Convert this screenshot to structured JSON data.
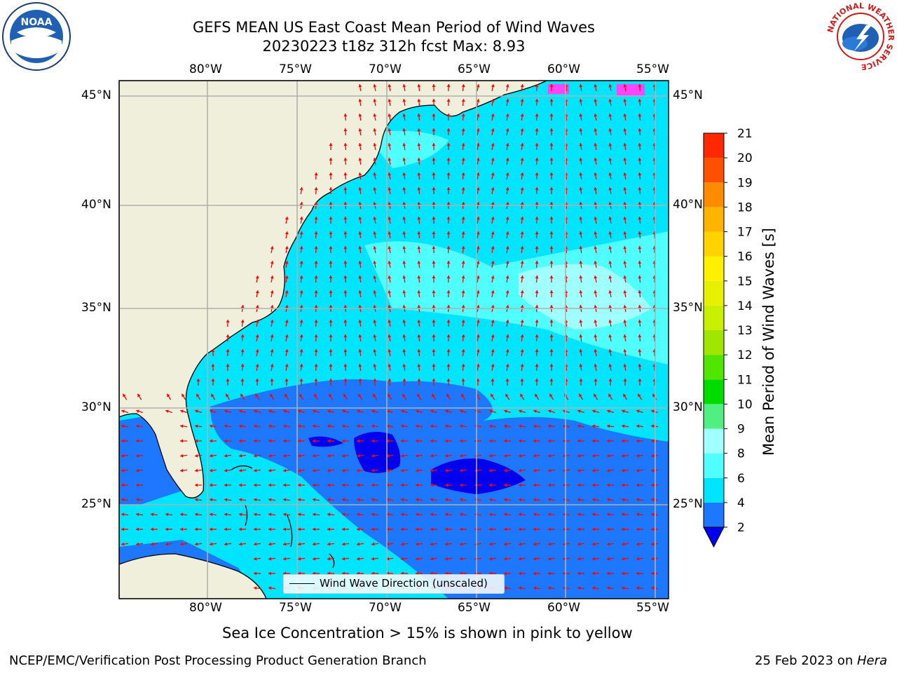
{
  "title_line1": "GEFS MEAN US East Coast Mean Period of Wind Waves",
  "title_line2": "20230223 t18z 312h fcst   Max: 8.93",
  "lon_ticks": [
    "80°W",
    "75°W",
    "70°W",
    "65°W",
    "60°W",
    "55°W"
  ],
  "lat_ticks": [
    "45°N",
    "40°N",
    "35°N",
    "30°N",
    "25°N"
  ],
  "legend_label": "Wind Wave Direction (unscaled)",
  "colorbar": {
    "label": "Mean Period of Wind Waves [s]",
    "ticks": [
      "2",
      "4",
      "6",
      "8",
      "9",
      "10",
      "11",
      "12",
      "13",
      "14",
      "15",
      "16",
      "17",
      "18",
      "19",
      "20",
      "21"
    ],
    "colors": [
      "#1e78ff",
      "#00e5ff",
      "#50ffff",
      "#a0ffff",
      "#50f080",
      "#00dc00",
      "#50e600",
      "#a0e600",
      "#c8f000",
      "#e6f000",
      "#fff000",
      "#ffd200",
      "#ffb400",
      "#ff8c00",
      "#ff5000",
      "#ff2800",
      "#ff0000"
    ],
    "under_color": "#0000ee"
  },
  "ice_note": "Sea Ice Concentration > 15% is shown in pink to yellow",
  "footer_left": "NCEP/EMC/Verification Post Processing Product Generation Branch",
  "footer_right_prefix": "25 Feb 2023 on ",
  "footer_right_italic": "Hera",
  "logos": {
    "left": "NOAA",
    "right_ring": "NATIONAL WEATHER SERVICE"
  },
  "colors": {
    "land": "#efefdc",
    "arrow": "#ff0000",
    "grid": "#b0b0b0",
    "ice": "#ff44ff"
  }
}
